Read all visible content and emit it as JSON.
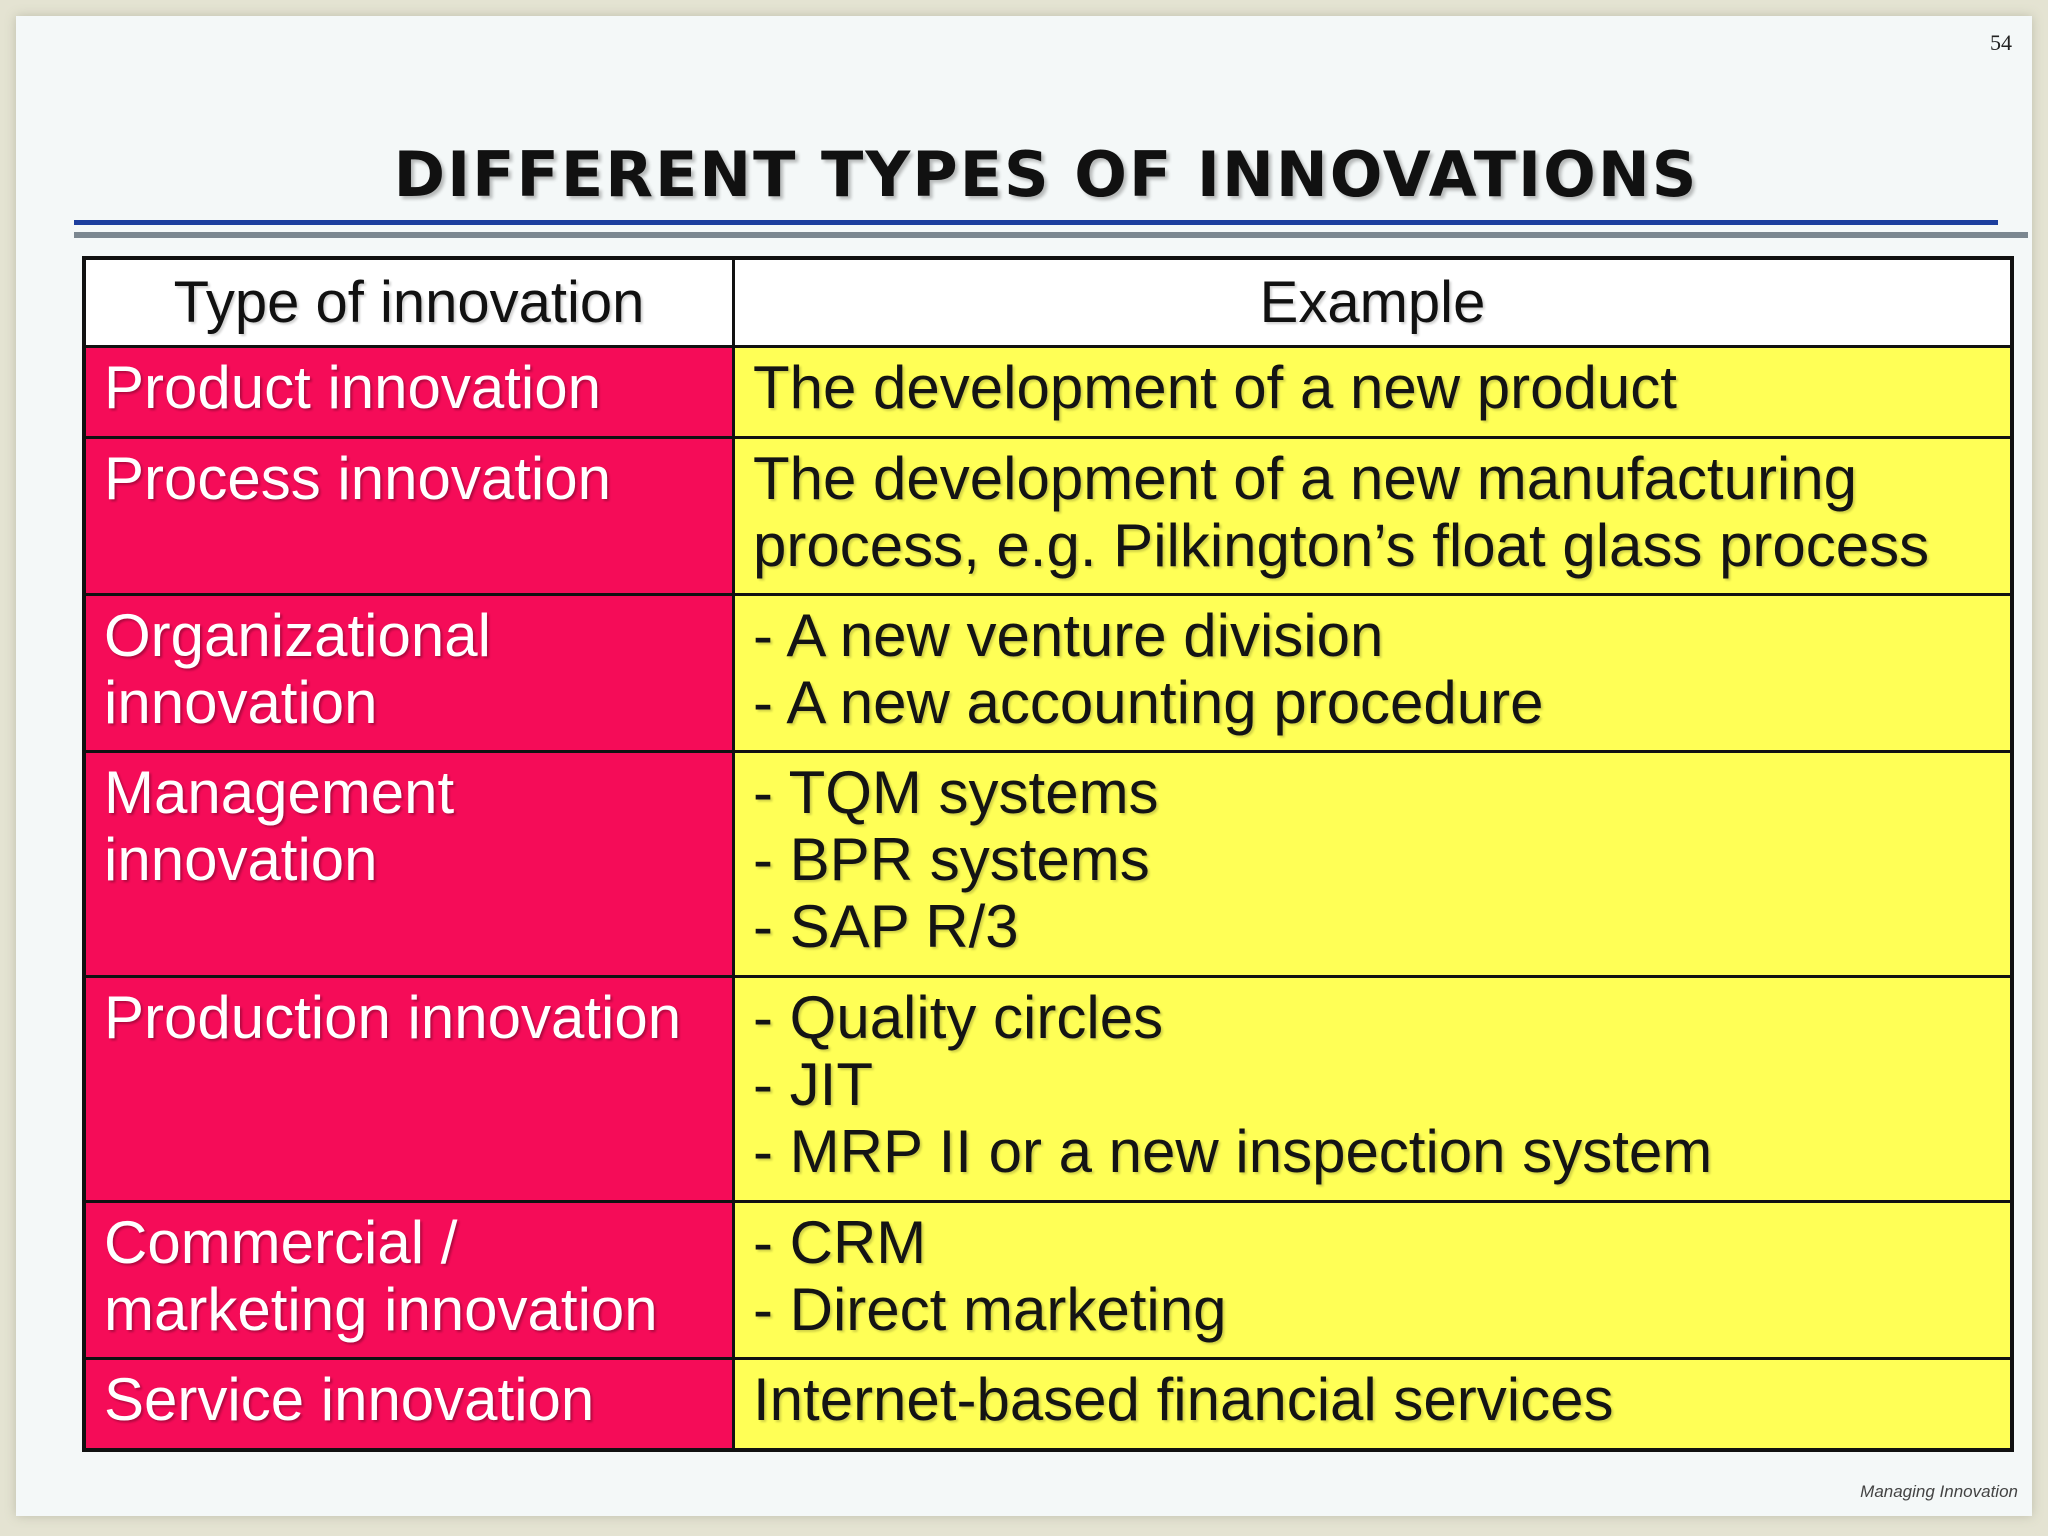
{
  "page_number": "54",
  "title": "DIFFERENT TYPES OF INNOVATIONS",
  "table": {
    "headers": [
      "Type of innovation",
      "Example"
    ],
    "rows": [
      {
        "type": [
          "Product innovation"
        ],
        "example": [
          "The development of a new product"
        ]
      },
      {
        "type": [
          "Process innovation"
        ],
        "example": [
          "The development of a new manufacturing",
          "process, e.g. Pilkington’s float glass process"
        ]
      },
      {
        "type": [
          "Organizational",
          "innovation"
        ],
        "example": [
          "- A new venture division",
          "- A new accounting procedure"
        ]
      },
      {
        "type": [
          "Management",
          "innovation"
        ],
        "example": [
          "- TQM systems",
          "- BPR systems",
          "- SAP R/3"
        ]
      },
      {
        "type": [
          "Production innovation"
        ],
        "example": [
          "- Quality circles",
          "- JIT",
          "- MRP II or a new inspection system"
        ]
      },
      {
        "type": [
          "Commercial /",
          "marketing innovation"
        ],
        "example": [
          "- CRM",
          "- Direct marketing"
        ]
      },
      {
        "type": [
          "Service innovation"
        ],
        "example": [
          "Internet-based financial services"
        ]
      }
    ],
    "colors": {
      "type_cell": "#f50c58",
      "example_cell": "#ffff56",
      "header_cell": "#ffffff"
    }
  },
  "footer": "Managing Innovation",
  "colors": {
    "title_rule": "#1d3f9e",
    "secondary_rule": "#7b8790"
  }
}
